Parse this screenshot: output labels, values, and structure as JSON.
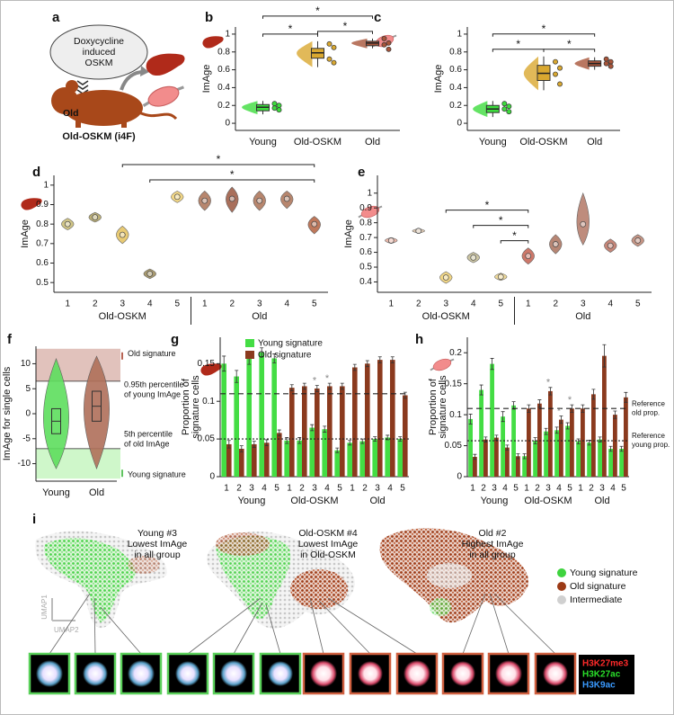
{
  "figure": {
    "panel_labels": [
      "a",
      "b",
      "c",
      "d",
      "e",
      "f",
      "g",
      "h",
      "i"
    ],
    "diagram_a": {
      "bubble": [
        "Doxycycline",
        "induced",
        "OSKM"
      ],
      "mouse_label": "Old",
      "model": "Old-OSKM (i4F)"
    },
    "panel_i": {
      "captions": [
        [
          "Young #3",
          "Lowest ImAge",
          "in all group"
        ],
        [
          "Old-OSKM #4",
          "Lowest ImAge",
          "in Old-OSKM"
        ],
        [
          "Old #2",
          "Highest ImAge",
          "in all group"
        ]
      ],
      "axes": [
        "UMAP1",
        "UMAP2"
      ],
      "legend": [
        "Young signature",
        "Old signature",
        "Intermediate"
      ],
      "stains": [
        "H3K27me3",
        "H3K27ac",
        "H3K9ac"
      ]
    }
  },
  "chart_data": [
    {
      "type": "box",
      "ylabel": "ImAge",
      "categories": [
        "Young",
        "Old-OSKM",
        "Old"
      ],
      "colors": [
        "#3ddc3d",
        "#d9a830",
        "#a8553a"
      ],
      "median": [
        0.18,
        0.79,
        0.9
      ],
      "q1": [
        0.14,
        0.73,
        0.87
      ],
      "q3": [
        0.21,
        0.84,
        0.92
      ],
      "whisker_low": [
        0.1,
        0.63,
        0.84
      ],
      "whisker_high": [
        0.25,
        0.92,
        0.95
      ],
      "points": [
        [
          0.22,
          0.2,
          0.17,
          0.15
        ],
        [
          0.89,
          0.85,
          0.72,
          0.68
        ],
        [
          0.95,
          0.9,
          0.88,
          0.83
        ]
      ],
      "ylim": [
        -0.08,
        1.08
      ],
      "yticks": [
        0,
        0.2,
        0.4,
        0.6,
        0.8,
        1
      ],
      "brackets": [
        [
          0,
          2
        ],
        [
          0,
          1
        ],
        [
          1,
          2
        ]
      ],
      "bracket_label": "*"
    },
    {
      "type": "box",
      "ylabel": "ImAge",
      "categories": [
        "Young",
        "Old-OSKM",
        "Old"
      ],
      "colors": [
        "#3ddc3d",
        "#d9a830",
        "#a8553a"
      ],
      "median": [
        0.16,
        0.56,
        0.67
      ],
      "q1": [
        0.12,
        0.48,
        0.64
      ],
      "q3": [
        0.2,
        0.65,
        0.7
      ],
      "whisker_low": [
        0.07,
        0.37,
        0.6
      ],
      "whisker_high": [
        0.25,
        0.75,
        0.74
      ],
      "points": [
        [
          0.22,
          0.19,
          0.16,
          0.13
        ],
        [
          0.69,
          0.62,
          0.55,
          0.44
        ],
        [
          0.72,
          0.69,
          0.67,
          0.64
        ]
      ],
      "ylim": [
        -0.08,
        1.08
      ],
      "yticks": [
        0,
        0.2,
        0.4,
        0.6,
        0.8,
        1
      ],
      "brackets": [
        [
          0,
          2
        ],
        [
          0,
          1
        ],
        [
          1,
          2
        ]
      ],
      "bracket_label": "*"
    },
    {
      "type": "violin",
      "ylabel": "ImAge",
      "groups": [
        "Old-OSKM",
        "Old"
      ],
      "categories": [
        "1",
        "2",
        "3",
        "4",
        "5",
        "1",
        "2",
        "3",
        "4",
        "5"
      ],
      "colors": [
        "#cbbf7a",
        "#b5a86a",
        "#e6c566",
        "#a09060",
        "#f0d27a",
        "#b07a5f",
        "#a0604a",
        "#b07a5f",
        "#b07a5f",
        "#b86a4a"
      ],
      "median": [
        0.8,
        0.835,
        0.745,
        0.545,
        0.94,
        0.92,
        0.93,
        0.92,
        0.93,
        0.8
      ],
      "low": [
        0.77,
        0.81,
        0.7,
        0.52,
        0.91,
        0.87,
        0.86,
        0.87,
        0.88,
        0.75
      ],
      "high": [
        0.83,
        0.86,
        0.79,
        0.57,
        0.97,
        0.97,
        0.99,
        0.97,
        0.97,
        0.84
      ],
      "ylim": [
        0.45,
        1.05
      ],
      "yticks": [
        0.5,
        0.6,
        0.7,
        0.8,
        0.9,
        1
      ],
      "brackets": [
        [
          2,
          9
        ],
        [
          3,
          9
        ]
      ],
      "bracket_label": "*"
    },
    {
      "type": "violin",
      "ylabel": "ImAge",
      "groups": [
        "Old-OSKM",
        "Old"
      ],
      "categories": [
        "1",
        "2",
        "3",
        "4",
        "5",
        "1",
        "2",
        "3",
        "4",
        "5"
      ],
      "colors": [
        "#e8b0a0",
        "#d8c0a8",
        "#f0d27a",
        "#c8c09a",
        "#f0d890",
        "#c86a5a",
        "#b07a66",
        "#b88070",
        "#c07a6a",
        "#c08a78"
      ],
      "median": [
        0.68,
        0.745,
        0.43,
        0.565,
        0.435,
        0.575,
        0.655,
        0.79,
        0.645,
        0.68
      ],
      "low": [
        0.66,
        0.73,
        0.39,
        0.53,
        0.41,
        0.52,
        0.59,
        0.65,
        0.6,
        0.64
      ],
      "high": [
        0.7,
        0.76,
        0.47,
        0.6,
        0.46,
        0.63,
        0.72,
        1,
        0.69,
        0.72
      ],
      "ylim": [
        0.33,
        1.12
      ],
      "yticks": [
        0.4,
        0.5,
        0.6,
        0.7,
        0.8,
        0.9,
        1
      ],
      "brackets": [
        [
          2,
          5
        ],
        [
          3,
          5
        ],
        [
          4,
          5
        ]
      ],
      "bracket_label": "*"
    },
    {
      "type": "violin",
      "ylabel": "ImAge for single cells",
      "categories": [
        "Young",
        "Old"
      ],
      "colors": [
        "#5ede5e",
        "#b0705a"
      ],
      "median": [
        -1.5,
        1.5
      ],
      "q1": [
        -4,
        -1.5
      ],
      "q3": [
        1,
        4.5
      ],
      "low": [
        -11,
        -11
      ],
      "high": [
        11,
        11.5
      ],
      "ylim": [
        -13.5,
        13.5
      ],
      "yticks": [
        -10,
        -5,
        0,
        5,
        10
      ],
      "bands": [
        {
          "name": "Old signature",
          "color": "#d7aea5",
          "range": [
            6.5,
            13
          ],
          "note": [
            "0.95th percentile",
            "of young ImAge"
          ]
        },
        {
          "name": "Young signature",
          "color": "#bff4b8",
          "range": [
            -13,
            -7
          ],
          "note": [
            "5th percentile",
            "of old ImAge"
          ]
        }
      ]
    },
    {
      "type": "bar",
      "ylabel": [
        "Proportion of",
        "signature cells"
      ],
      "groups": [
        "Young",
        "Old-OSKM",
        "Old"
      ],
      "legend": "top",
      "categories": [
        "1",
        "2",
        "3",
        "4",
        "5",
        "1",
        "2",
        "3",
        "4",
        "5",
        "1",
        "2",
        "3",
        "4",
        "5"
      ],
      "series": [
        {
          "name": "Young signature",
          "color": "#44dd44",
          "values": [
            0.15,
            0.133,
            0.157,
            0.165,
            0.157,
            0.048,
            0.048,
            0.065,
            0.063,
            0.035,
            0.045,
            0.047,
            0.05,
            0.052,
            0.05
          ],
          "errors": [
            0.01,
            0.008,
            0.008,
            0.006,
            0.006,
            0.004,
            0.004,
            0.004,
            0.004,
            0.003,
            0.003,
            0.003,
            0.003,
            0.003,
            0.003
          ]
        },
        {
          "name": "Old signature",
          "color": "#8b3a1e",
          "values": [
            0.043,
            0.037,
            0.043,
            0.045,
            0.058,
            0.118,
            0.12,
            0.117,
            0.12,
            0.12,
            0.145,
            0.15,
            0.155,
            0.155,
            0.108
          ],
          "errors": [
            0.005,
            0.004,
            0.004,
            0.004,
            0.004,
            0.004,
            0.004,
            0.004,
            0.004,
            0.004,
            0.004,
            0.004,
            0.004,
            0.004,
            0.004
          ]
        }
      ],
      "reference_lines": [
        {
          "value": 0.11,
          "style": "dashed"
        },
        {
          "value": 0.05,
          "style": "dotted"
        }
      ],
      "stars": [
        7,
        8
      ],
      "star_label": "*",
      "ylim": [
        0,
        0.185
      ],
      "yticks": [
        0,
        0.05,
        0.1,
        0.15
      ]
    },
    {
      "type": "bar",
      "ylabel": [
        "Proportion of",
        "signature cells"
      ],
      "groups": [
        "Young",
        "Old-OSKM",
        "Old"
      ],
      "categories": [
        "1",
        "2",
        "3",
        "4",
        "5",
        "1",
        "2",
        "3",
        "4",
        "5",
        "1",
        "2",
        "3",
        "4",
        "5"
      ],
      "series": [
        {
          "name": "Young signature",
          "color": "#44dd44",
          "values": [
            0.093,
            0.14,
            0.182,
            0.097,
            0.115,
            0.033,
            0.058,
            0.073,
            0.075,
            0.082,
            0.057,
            0.055,
            0.06,
            0.045,
            0.045
          ],
          "errors": [
            0.008,
            0.008,
            0.009,
            0.008,
            0.006,
            0.004,
            0.005,
            0.005,
            0.005,
            0.005,
            0.004,
            0.004,
            0.004,
            0.004,
            0.004
          ]
        },
        {
          "name": "Old signature",
          "color": "#8b3a1e",
          "values": [
            0.032,
            0.06,
            0.063,
            0.047,
            0.033,
            0.11,
            0.118,
            0.138,
            0.092,
            0.11,
            0.11,
            0.133,
            0.195,
            0.1,
            0.128
          ],
          "errors": [
            0.004,
            0.004,
            0.004,
            0.004,
            0.004,
            0.006,
            0.006,
            0.006,
            0.006,
            0.006,
            0.006,
            0.008,
            0.018,
            0.006,
            0.008
          ]
        }
      ],
      "reference_lines": [
        {
          "value": 0.11,
          "style": "dashed",
          "label": [
            "Reference",
            "old prop."
          ]
        },
        {
          "value": 0.058,
          "style": "dotted",
          "label": [
            "Reference",
            "young prop."
          ]
        }
      ],
      "stars": [
        7,
        8,
        9
      ],
      "star_label": "*",
      "ylim": [
        0,
        0.225
      ],
      "yticks": [
        0,
        0.05,
        0.1,
        0.15,
        0.2
      ]
    }
  ]
}
